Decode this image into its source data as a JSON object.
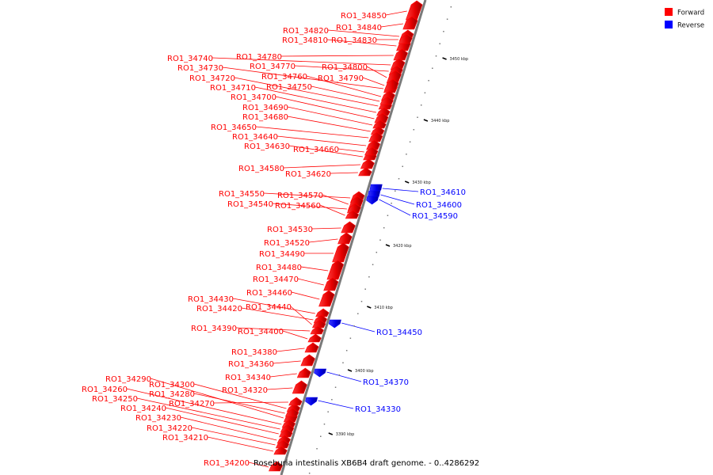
{
  "legend": {
    "forward_label": "Forward",
    "reverse_label": "Reverse",
    "forward_color": "#ff0000",
    "reverse_color": "#0000ff"
  },
  "caption": "Roseburia intestinalis XB6B4 draft genome. - 0..4286292",
  "axis": {
    "ticks": [
      "3390 kbp",
      "3400 kbp",
      "3410 kbp",
      "3420 kbp",
      "3430 kbp",
      "3440 kbp",
      "3450 kbp"
    ]
  },
  "genes": [
    {
      "id": "RO1_34850",
      "strand": "forward"
    },
    {
      "id": "RO1_34840",
      "strand": "forward"
    },
    {
      "id": "RO1_34820",
      "strand": "forward"
    },
    {
      "id": "RO1_34810",
      "strand": "forward"
    },
    {
      "id": "RO1_34830",
      "strand": "forward"
    },
    {
      "id": "RO1_34780",
      "strand": "forward"
    },
    {
      "id": "RO1_34740",
      "strand": "forward"
    },
    {
      "id": "RO1_34770",
      "strand": "forward"
    },
    {
      "id": "RO1_34800",
      "strand": "forward"
    },
    {
      "id": "RO1_34730",
      "strand": "forward"
    },
    {
      "id": "RO1_34760",
      "strand": "forward"
    },
    {
      "id": "RO1_34790",
      "strand": "forward"
    },
    {
      "id": "RO1_34720",
      "strand": "forward"
    },
    {
      "id": "RO1_34710",
      "strand": "forward"
    },
    {
      "id": "RO1_34750",
      "strand": "forward"
    },
    {
      "id": "RO1_34700",
      "strand": "forward"
    },
    {
      "id": "RO1_34690",
      "strand": "forward"
    },
    {
      "id": "RO1_34680",
      "strand": "forward"
    },
    {
      "id": "RO1_34650",
      "strand": "forward"
    },
    {
      "id": "RO1_34640",
      "strand": "forward"
    },
    {
      "id": "RO1_34630",
      "strand": "forward"
    },
    {
      "id": "RO1_34660",
      "strand": "forward"
    },
    {
      "id": "RO1_34580",
      "strand": "forward"
    },
    {
      "id": "RO1_34620",
      "strand": "forward"
    },
    {
      "id": "RO1_34610",
      "strand": "reverse"
    },
    {
      "id": "RO1_34550",
      "strand": "forward"
    },
    {
      "id": "RO1_34570",
      "strand": "forward"
    },
    {
      "id": "RO1_34600",
      "strand": "reverse"
    },
    {
      "id": "RO1_34540",
      "strand": "forward"
    },
    {
      "id": "RO1_34560",
      "strand": "forward"
    },
    {
      "id": "RO1_34590",
      "strand": "reverse"
    },
    {
      "id": "RO1_34530",
      "strand": "forward"
    },
    {
      "id": "RO1_34520",
      "strand": "forward"
    },
    {
      "id": "RO1_34490",
      "strand": "forward"
    },
    {
      "id": "RO1_34480",
      "strand": "forward"
    },
    {
      "id": "RO1_34470",
      "strand": "forward"
    },
    {
      "id": "RO1_34460",
      "strand": "forward"
    },
    {
      "id": "RO1_34430",
      "strand": "forward"
    },
    {
      "id": "RO1_34420",
      "strand": "forward"
    },
    {
      "id": "RO1_34440",
      "strand": "forward"
    },
    {
      "id": "RO1_34390",
      "strand": "forward"
    },
    {
      "id": "RO1_34400",
      "strand": "forward"
    },
    {
      "id": "RO1_34450",
      "strand": "reverse"
    },
    {
      "id": "RO1_34380",
      "strand": "forward"
    },
    {
      "id": "RO1_34360",
      "strand": "forward"
    },
    {
      "id": "RO1_34290",
      "strand": "forward"
    },
    {
      "id": "RO1_34340",
      "strand": "forward"
    },
    {
      "id": "RO1_34370",
      "strand": "reverse"
    },
    {
      "id": "RO1_34300",
      "strand": "forward"
    },
    {
      "id": "RO1_34260",
      "strand": "forward"
    },
    {
      "id": "RO1_34320",
      "strand": "forward"
    },
    {
      "id": "RO1_34280",
      "strand": "forward"
    },
    {
      "id": "RO1_34250",
      "strand": "forward"
    },
    {
      "id": "RO1_34270",
      "strand": "forward"
    },
    {
      "id": "RO1_34330",
      "strand": "reverse"
    },
    {
      "id": "RO1_34240",
      "strand": "forward"
    },
    {
      "id": "RO1_34230",
      "strand": "forward"
    },
    {
      "id": "RO1_34220",
      "strand": "forward"
    },
    {
      "id": "RO1_34210",
      "strand": "forward"
    },
    {
      "id": "RO1_34200",
      "strand": "forward"
    }
  ]
}
